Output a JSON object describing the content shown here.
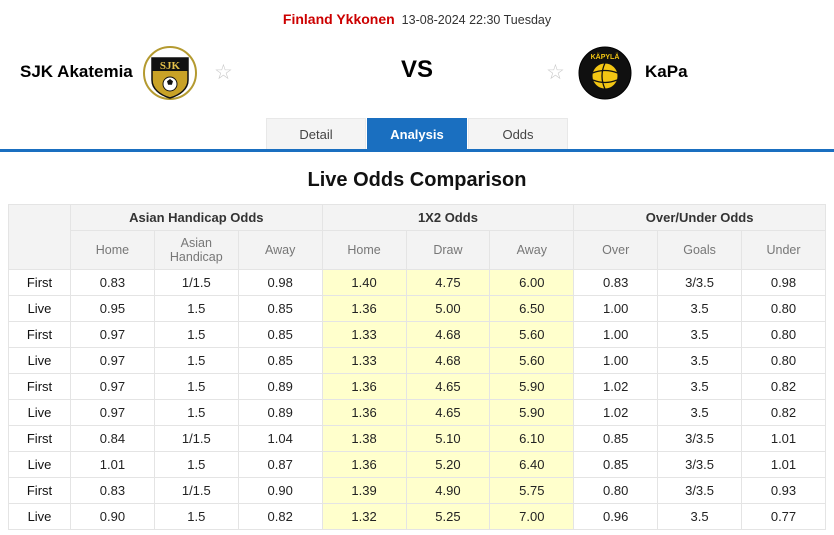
{
  "colors": {
    "accent_blue": "#1a6fc0",
    "league_red": "#cc0000",
    "x12_highlight": "#ffffcc",
    "header_gray": "#f3f3f3"
  },
  "top_bar": {
    "league": "Finland Ykkonen",
    "datetime": "13-08-2024 22:30 Tuesday"
  },
  "match": {
    "home_team": "SJK Akatemia",
    "away_team": "KaPa",
    "vs": "VS",
    "home_logo_text": "SJK",
    "away_logo_text": "KÄPYLÄ",
    "favorite_star": "☆"
  },
  "tabs": [
    {
      "label": "Detail",
      "active": false
    },
    {
      "label": "Analysis",
      "active": true
    },
    {
      "label": "Odds",
      "active": false
    }
  ],
  "section_title": "Live Odds Comparison",
  "odds_table": {
    "groups": [
      "Asian Handicap Odds",
      "1X2 Odds",
      "Over/Under Odds"
    ],
    "columns": [
      "Home",
      "Asian Handicap",
      "Away",
      "Home",
      "Draw",
      "Away",
      "Over",
      "Goals",
      "Under"
    ],
    "rows": [
      {
        "label": "First",
        "values": [
          "0.83",
          "1/1.5",
          "0.98",
          "1.40",
          "4.75",
          "6.00",
          "0.83",
          "3/3.5",
          "0.98"
        ]
      },
      {
        "label": "Live",
        "values": [
          "0.95",
          "1.5",
          "0.85",
          "1.36",
          "5.00",
          "6.50",
          "1.00",
          "3.5",
          "0.80"
        ]
      },
      {
        "label": "First",
        "values": [
          "0.97",
          "1.5",
          "0.85",
          "1.33",
          "4.68",
          "5.60",
          "1.00",
          "3.5",
          "0.80"
        ]
      },
      {
        "label": "Live",
        "values": [
          "0.97",
          "1.5",
          "0.85",
          "1.33",
          "4.68",
          "5.60",
          "1.00",
          "3.5",
          "0.80"
        ]
      },
      {
        "label": "First",
        "values": [
          "0.97",
          "1.5",
          "0.89",
          "1.36",
          "4.65",
          "5.90",
          "1.02",
          "3.5",
          "0.82"
        ]
      },
      {
        "label": "Live",
        "values": [
          "0.97",
          "1.5",
          "0.89",
          "1.36",
          "4.65",
          "5.90",
          "1.02",
          "3.5",
          "0.82"
        ]
      },
      {
        "label": "First",
        "values": [
          "0.84",
          "1/1.5",
          "1.04",
          "1.38",
          "5.10",
          "6.10",
          "0.85",
          "3/3.5",
          "1.01"
        ]
      },
      {
        "label": "Live",
        "values": [
          "1.01",
          "1.5",
          "0.87",
          "1.36",
          "5.20",
          "6.40",
          "0.85",
          "3/3.5",
          "1.01"
        ]
      },
      {
        "label": "First",
        "values": [
          "0.83",
          "1/1.5",
          "0.90",
          "1.39",
          "4.90",
          "5.75",
          "0.80",
          "3/3.5",
          "0.93"
        ]
      },
      {
        "label": "Live",
        "values": [
          "0.90",
          "1.5",
          "0.82",
          "1.32",
          "5.25",
          "7.00",
          "0.96",
          "3.5",
          "0.77"
        ]
      }
    ]
  }
}
